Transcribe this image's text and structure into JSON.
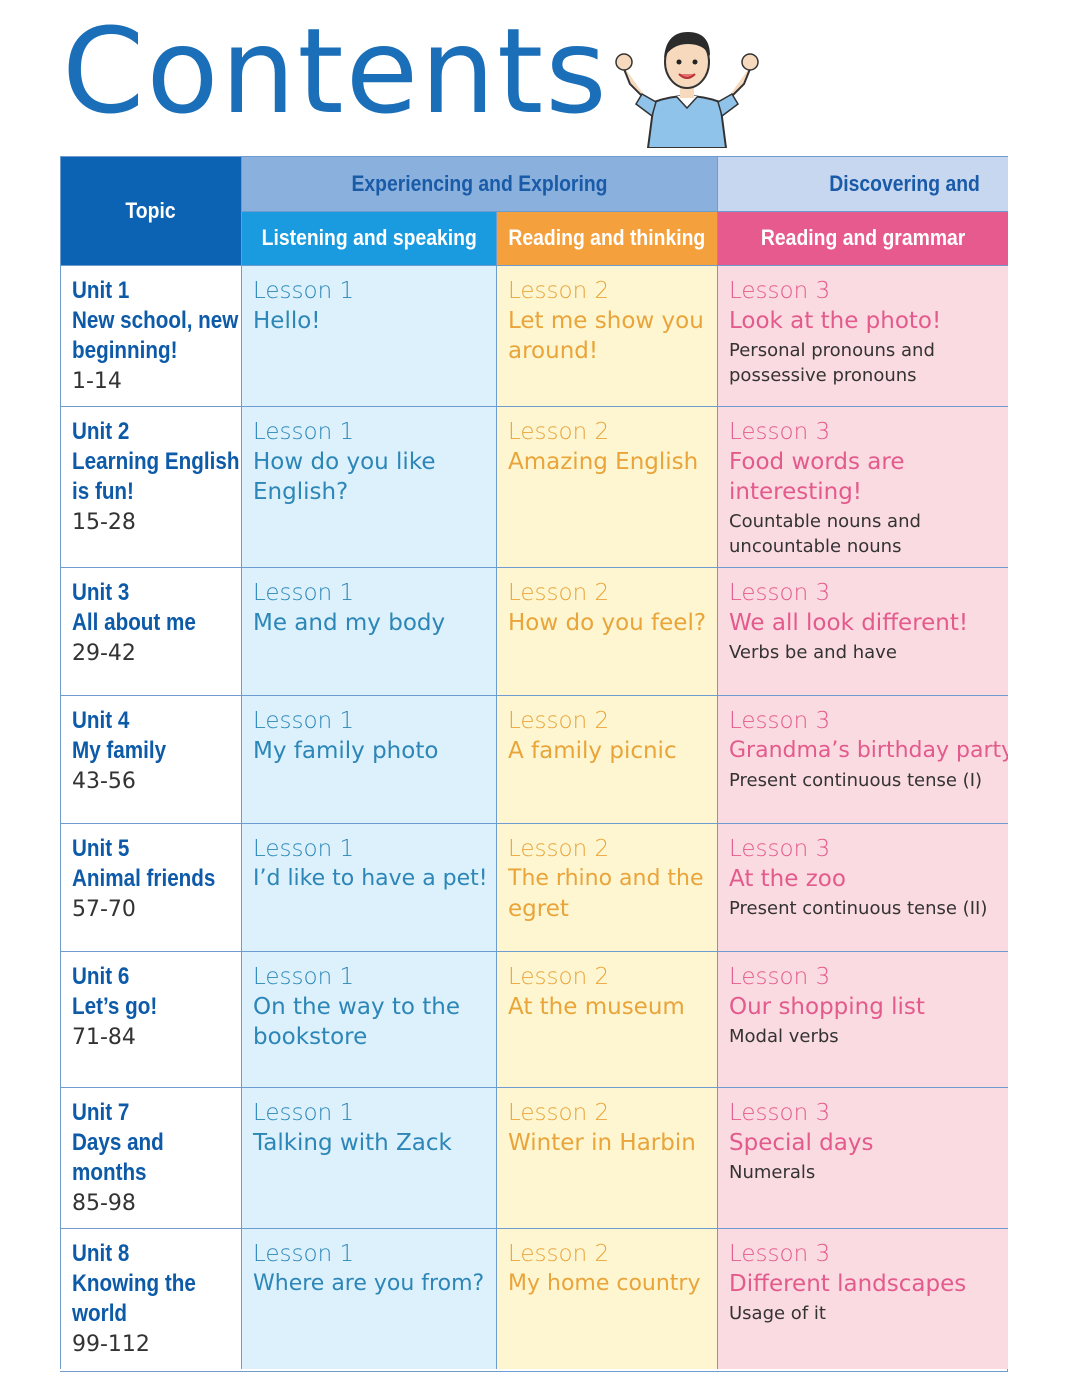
{
  "title": "Contents",
  "headers": {
    "topic": "Topic",
    "group1": "Experiencing and Exploring",
    "group2": "Discovering and",
    "col1": "Listening and speaking",
    "col2": "Reading and thinking",
    "col3": "Reading and grammar"
  },
  "colors": {
    "title": "#1b6fb8",
    "topic_header": "#0d63b3",
    "listening_header": "#1a9be0",
    "reading_thinking_header": "#f4a03c",
    "reading_grammar_header": "#e75a8e"
  },
  "rows": [
    {
      "unit": "Unit 1",
      "name": [
        "New school, new",
        "beginning!"
      ],
      "pages": "1-14",
      "l1": "Lesson 1",
      "l1_title": [
        "Hello!"
      ],
      "l2": "Lesson 2",
      "l2_title": [
        "Let me show you",
        "around!"
      ],
      "l3": "Lesson 3",
      "l3_title": [
        "Look at the photo!"
      ],
      "grammar": [
        "Personal pronouns and",
        "possessive pronouns"
      ]
    },
    {
      "unit": "Unit 2",
      "name": [
        "Learning English",
        "is fun!"
      ],
      "pages": "15-28",
      "l1": "Lesson 1",
      "l1_title": [
        "How do you like",
        "English?"
      ],
      "l2": "Lesson 2",
      "l2_title": [
        "Amazing English"
      ],
      "l3": "Lesson 3",
      "l3_title": [
        "Food words are",
        "interesting!"
      ],
      "grammar": [
        "Countable nouns and",
        "uncountable nouns"
      ]
    },
    {
      "unit": "Unit 3",
      "name": [
        "All about me"
      ],
      "pages": "29-42",
      "l1": "Lesson 1",
      "l1_title": [
        "Me and my body"
      ],
      "l2": "Lesson 2",
      "l2_title": [
        "How do you feel?"
      ],
      "l3": "Lesson 3",
      "l3_title": [
        "We all look different!"
      ],
      "grammar": [
        "Verbs be and have"
      ]
    },
    {
      "unit": "Unit 4",
      "name": [
        "My family"
      ],
      "pages": "43-56",
      "l1": "Lesson 1",
      "l1_title": [
        "My family photo"
      ],
      "l2": "Lesson 2",
      "l2_title": [
        "A family picnic"
      ],
      "l3": "Lesson 3",
      "l3_title": [
        "Grandma’s birthday party"
      ],
      "grammar": [
        "Present continuous tense (I)"
      ]
    },
    {
      "unit": "Unit 5",
      "name": [
        "Animal friends"
      ],
      "pages": "57-70",
      "l1": "Lesson 1",
      "l1_title": [
        "I’d like to have a pet!"
      ],
      "l2": "Lesson 2",
      "l2_title": [
        "The rhino and the",
        "egret"
      ],
      "l3": "Lesson 3",
      "l3_title": [
        "At the zoo"
      ],
      "grammar": [
        "Present continuous tense (II)"
      ]
    },
    {
      "unit": "Unit 6",
      "name": [
        "Let’s go!"
      ],
      "pages": "71-84",
      "l1": "Lesson 1",
      "l1_title": [
        "On the way to the",
        "bookstore"
      ],
      "l2": "Lesson 2",
      "l2_title": [
        "At the museum"
      ],
      "l3": "Lesson 3",
      "l3_title": [
        "Our shopping list"
      ],
      "grammar": [
        "Modal verbs"
      ]
    },
    {
      "unit": "Unit 7",
      "name": [
        "Days and",
        "months"
      ],
      "pages": "85-98",
      "l1": "Lesson 1",
      "l1_title": [
        "Talking with Zack"
      ],
      "l2": "Lesson 2",
      "l2_title": [
        "Winter in Harbin"
      ],
      "l3": "Lesson 3",
      "l3_title": [
        "Special days"
      ],
      "grammar": [
        "Numerals"
      ]
    },
    {
      "unit": "Unit 8",
      "name": [
        "Knowing the",
        "world"
      ],
      "pages": "99-112",
      "l1": "Lesson 1",
      "l1_title": [
        "Where are you from?"
      ],
      "l2": "Lesson 2",
      "l2_title": [
        "My home country"
      ],
      "l3": "Lesson 3",
      "l3_title": [
        "Different landscapes"
      ],
      "grammar": [
        "Usage of it"
      ]
    }
  ]
}
